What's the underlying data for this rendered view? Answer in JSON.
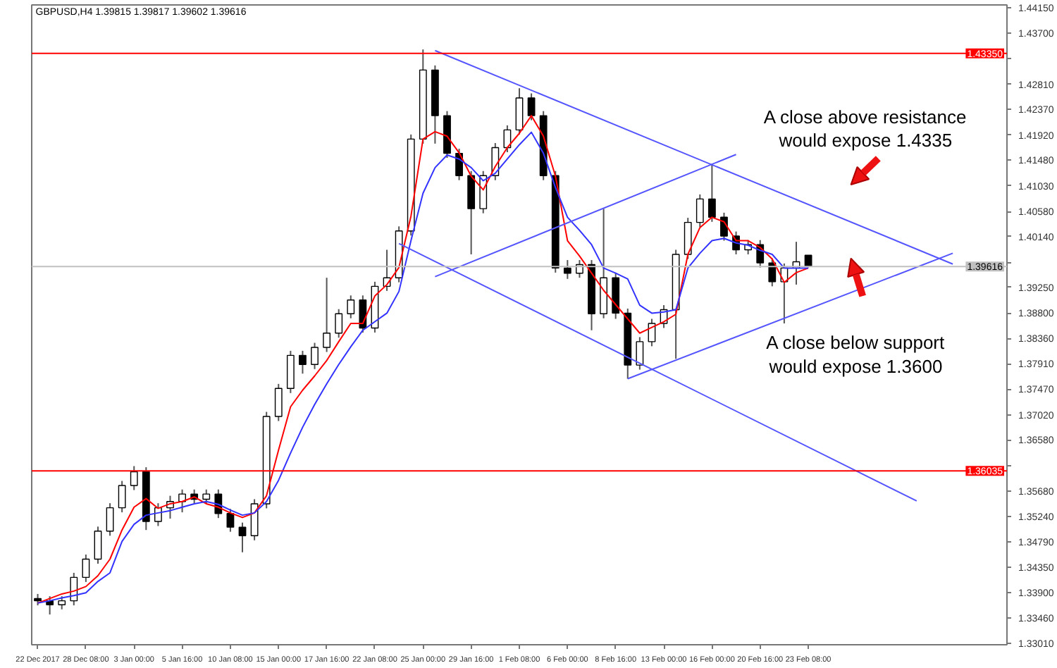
{
  "chart_data": {
    "type": "candlestick",
    "title": "GBPUSD,H4  1.39815 1.39817 1.39602 1.39616",
    "categories": [
      "22 Dec 2017",
      null,
      null,
      null,
      "28 Dec 08:00",
      null,
      null,
      null,
      "3 Jan 00:00",
      null,
      null,
      null,
      "5 Jan 16:00",
      null,
      null,
      null,
      "10 Jan 08:00",
      null,
      null,
      null,
      "15 Jan 00:00",
      null,
      null,
      null,
      "17 Jan 16:00",
      null,
      null,
      null,
      "22 Jan 08:00",
      null,
      null,
      null,
      "25 Jan 00:00",
      null,
      null,
      null,
      "29 Jan 16:00",
      null,
      null,
      null,
      "1 Feb 08:00",
      null,
      null,
      null,
      "6 Feb 00:00",
      null,
      null,
      null,
      "8 Feb 16:00",
      null,
      null,
      null,
      "13 Feb 00:00",
      null,
      null,
      null,
      "16 Feb 00:00",
      null,
      null,
      null,
      "20 Feb 16:00",
      null,
      null,
      null,
      "23 Feb 08:00",
      null,
      null,
      null,
      null,
      null,
      null,
      null,
      null,
      null,
      null,
      null,
      null,
      null,
      null,
      null,
      null
    ],
    "ohlc": [
      [
        1.338,
        1.3388,
        1.3368,
        1.3376
      ],
      [
        1.3376,
        1.3384,
        1.3352,
        1.3369
      ],
      [
        1.3369,
        1.3384,
        1.3361,
        1.3376
      ],
      [
        1.3376,
        1.3425,
        1.3368,
        1.3417
      ],
      [
        1.3417,
        1.3457,
        1.3409,
        1.3449
      ],
      [
        1.3449,
        1.3506,
        1.3441,
        1.3498
      ],
      [
        1.3498,
        1.3547,
        1.349,
        1.3539
      ],
      [
        1.3539,
        1.3586,
        1.3531,
        1.3578
      ],
      [
        1.3578,
        1.3612,
        1.357,
        1.3602
      ],
      [
        1.3602,
        1.361,
        1.35,
        1.3515
      ],
      [
        1.3515,
        1.3547,
        1.3507,
        1.3539
      ],
      [
        1.3539,
        1.356,
        1.352,
        1.355
      ],
      [
        1.355,
        1.3571,
        1.3531,
        1.3563
      ],
      [
        1.3563,
        1.3571,
        1.3546,
        1.3554
      ],
      [
        1.3554,
        1.3571,
        1.3546,
        1.3563
      ],
      [
        1.3563,
        1.3571,
        1.3521,
        1.3529
      ],
      [
        1.3529,
        1.3537,
        1.3497,
        1.3505
      ],
      [
        1.3505,
        1.3513,
        1.3461,
        1.349
      ],
      [
        1.349,
        1.3554,
        1.3482,
        1.3546
      ],
      [
        1.3546,
        1.3707,
        1.3538,
        1.3699
      ],
      [
        1.3699,
        1.3756,
        1.3691,
        1.3748
      ],
      [
        1.3748,
        1.3814,
        1.374,
        1.3806
      ],
      [
        1.3806,
        1.3814,
        1.3774,
        1.379
      ],
      [
        1.379,
        1.3828,
        1.3782,
        1.382
      ],
      [
        1.382,
        1.3942,
        1.3812,
        1.3845
      ],
      [
        1.3845,
        1.3887,
        1.3837,
        1.3879
      ],
      [
        1.3879,
        1.3911,
        1.3871,
        1.3903
      ],
      [
        1.3903,
        1.3911,
        1.3846,
        1.3854
      ],
      [
        1.3854,
        1.3935,
        1.3846,
        1.3927
      ],
      [
        1.3927,
        1.3991,
        1.3919,
        1.3942
      ],
      [
        1.3942,
        1.4032,
        1.3934,
        1.4024
      ],
      [
        1.4024,
        1.4193,
        1.4016,
        1.4185
      ],
      [
        1.4185,
        1.4342,
        1.4177,
        1.4306
      ],
      [
        1.4306,
        1.4314,
        1.4177,
        1.4226
      ],
      [
        1.4226,
        1.4234,
        1.4152,
        1.416
      ],
      [
        1.416,
        1.4168,
        1.4113,
        1.4121
      ],
      [
        1.4121,
        1.4129,
        1.3983,
        1.4063
      ],
      [
        1.4063,
        1.4129,
        1.4055,
        1.4121
      ],
      [
        1.4121,
        1.4178,
        1.4113,
        1.417
      ],
      [
        1.417,
        1.4209,
        1.4162,
        1.4201
      ],
      [
        1.4201,
        1.4274,
        1.4193,
        1.4257
      ],
      [
        1.4257,
        1.4265,
        1.4218,
        1.4226
      ],
      [
        1.4226,
        1.4234,
        1.4113,
        1.4121
      ],
      [
        1.4121,
        1.4129,
        1.3951,
        1.3959
      ],
      [
        1.3959,
        1.3973,
        1.394,
        1.395
      ],
      [
        1.395,
        1.3973,
        1.3942,
        1.3965
      ],
      [
        1.3965,
        1.3973,
        1.385,
        1.3879
      ],
      [
        1.3879,
        1.4063,
        1.3871,
        1.3942
      ],
      [
        1.3942,
        1.395,
        1.387,
        1.388
      ],
      [
        1.388,
        1.3888,
        1.3765,
        1.3789
      ],
      [
        1.3789,
        1.3838,
        1.3781,
        1.383
      ],
      [
        1.383,
        1.387,
        1.3822,
        1.3862
      ],
      [
        1.3862,
        1.3894,
        1.3854,
        1.3886
      ],
      [
        1.3886,
        1.3991,
        1.38,
        1.3983
      ],
      [
        1.3983,
        1.4047,
        1.3975,
        1.4039
      ],
      [
        1.4039,
        1.4088,
        1.4031,
        1.408
      ],
      [
        1.408,
        1.4141,
        1.404,
        1.4048
      ],
      [
        1.4048,
        1.4056,
        1.4007,
        1.4015
      ],
      [
        1.4015,
        1.4023,
        1.3983,
        1.3991
      ],
      [
        1.3991,
        1.4008,
        1.3983,
        1.4
      ],
      [
        1.4,
        1.4008,
        1.396,
        1.3968
      ],
      [
        1.3968,
        1.3976,
        1.3927,
        1.3935
      ],
      [
        1.3935,
        1.3967,
        1.3862,
        1.3959
      ],
      [
        1.3959,
        1.4005,
        1.393,
        1.397
      ],
      [
        1.39815,
        1.39817,
        1.39602,
        1.39616
      ],
      null,
      null,
      null,
      null,
      null,
      null,
      null,
      null,
      null,
      null,
      null,
      null,
      null,
      null,
      null,
      null
    ],
    "series": [
      {
        "type": "line",
        "color": "#ff0000",
        "values": [
          1.3372,
          1.338,
          1.3388,
          1.3393,
          1.3401,
          1.342,
          1.3449,
          1.35,
          1.354,
          1.3555,
          1.3538,
          1.3546,
          1.355,
          1.3558,
          1.3546,
          1.354,
          1.353,
          1.3522,
          1.353,
          1.356,
          1.364,
          1.3716,
          1.3745,
          1.377,
          1.3797,
          1.383,
          1.3862,
          1.3862,
          1.391,
          1.393,
          1.396,
          1.405,
          1.4185,
          1.4198,
          1.419,
          1.4161,
          1.412,
          1.4096,
          1.4137,
          1.417,
          1.4195,
          1.4226,
          1.419,
          1.412,
          1.4007,
          1.398,
          1.395,
          1.392,
          1.3895,
          1.387,
          1.3845,
          1.3855,
          1.3865,
          1.3878,
          1.3983,
          1.403,
          1.4048,
          1.404,
          1.4007,
          1.4007,
          1.3995,
          1.3975,
          1.3934,
          1.3951,
          1.3959,
          null,
          null,
          null,
          null,
          null,
          null,
          null,
          null,
          null,
          null,
          null,
          null,
          null,
          null,
          null,
          null
        ]
      },
      {
        "type": "line",
        "color": "#3333ff",
        "values": [
          1.3372,
          1.3376,
          1.3381,
          1.3385,
          1.339,
          1.341,
          1.3425,
          1.348,
          1.351,
          1.3526,
          1.353,
          1.3534,
          1.354,
          1.3546,
          1.355,
          1.3545,
          1.3535,
          1.3526,
          1.353,
          1.355,
          1.3587,
          1.3635,
          1.368,
          1.372,
          1.3756,
          1.379,
          1.3821,
          1.385,
          1.3865,
          1.388,
          1.3918,
          1.4007,
          1.409,
          1.4135,
          1.4157,
          1.415,
          1.4135,
          1.4112,
          1.4125,
          1.415,
          1.4175,
          1.4197,
          1.416,
          1.41,
          1.4048,
          1.4025,
          1.4,
          1.3959,
          1.395,
          1.394,
          1.3894,
          1.388,
          1.3882,
          1.3886,
          1.3959,
          1.3985,
          1.4007,
          1.4011,
          1.4003,
          1.3999,
          1.399,
          1.3983,
          1.3959,
          1.3959,
          1.3959,
          null,
          null,
          null,
          null,
          null,
          null,
          null,
          null,
          null,
          null,
          null,
          null,
          null,
          null,
          null,
          null
        ]
      },
      {
        "type": "line",
        "color": "#5555ff",
        "values": [
          null,
          null,
          null,
          null,
          null,
          null,
          null,
          null,
          null,
          null,
          null,
          null,
          null,
          null,
          null,
          null,
          null,
          null,
          null,
          null,
          null,
          null,
          null,
          null,
          null,
          null,
          null,
          null,
          null,
          null,
          null,
          null,
          null,
          1.434,
          null,
          null,
          null,
          null,
          null,
          null,
          null,
          null,
          null,
          null,
          null,
          null,
          null,
          null,
          null,
          null,
          null,
          null,
          null,
          null,
          null,
          null,
          null,
          null,
          null,
          null,
          null,
          null,
          null,
          null,
          null,
          null,
          null,
          null,
          null,
          null,
          null,
          null,
          null,
          null,
          null,
          null,
          1.3966,
          null,
          null,
          null,
          null
        ]
      },
      {
        "type": "line",
        "color": "#5555ff",
        "values": [
          null,
          null,
          null,
          null,
          null,
          null,
          null,
          null,
          null,
          null,
          null,
          null,
          null,
          null,
          null,
          null,
          null,
          null,
          null,
          null,
          null,
          null,
          null,
          null,
          null,
          null,
          null,
          null,
          null,
          null,
          1.4002,
          null,
          null,
          null,
          null,
          null,
          null,
          null,
          null,
          null,
          null,
          null,
          null,
          null,
          null,
          null,
          null,
          null,
          null,
          null,
          null,
          null,
          null,
          null,
          null,
          null,
          null,
          null,
          null,
          null,
          null,
          null,
          null,
          null,
          null,
          null,
          null,
          null,
          null,
          null,
          null,
          null,
          null,
          1.3551,
          null,
          null,
          null,
          null,
          null,
          null,
          null
        ]
      },
      {
        "type": "line",
        "color": "#5555ff",
        "values": [
          null,
          null,
          null,
          null,
          null,
          null,
          null,
          null,
          null,
          null,
          null,
          null,
          null,
          null,
          null,
          null,
          null,
          null,
          null,
          null,
          null,
          null,
          null,
          null,
          null,
          null,
          null,
          null,
          null,
          null,
          null,
          null,
          null,
          1.3944,
          null,
          null,
          null,
          null,
          null,
          null,
          null,
          null,
          null,
          null,
          null,
          null,
          null,
          null,
          null,
          null,
          null,
          null,
          null,
          null,
          null,
          null,
          null,
          null,
          1.4158,
          null,
          null,
          null,
          null,
          null,
          null,
          null,
          null,
          null,
          null,
          null,
          null,
          null,
          null,
          null,
          null,
          null,
          null,
          null,
          null,
          null,
          null
        ]
      },
      {
        "type": "line",
        "color": "#5555ff",
        "values": [
          null,
          null,
          null,
          null,
          null,
          null,
          null,
          null,
          null,
          null,
          null,
          null,
          null,
          null,
          null,
          null,
          null,
          null,
          null,
          null,
          null,
          null,
          null,
          null,
          null,
          null,
          null,
          null,
          null,
          null,
          null,
          null,
          null,
          null,
          null,
          null,
          null,
          null,
          null,
          null,
          null,
          null,
          null,
          null,
          null,
          null,
          null,
          null,
          null,
          1.3765,
          null,
          null,
          null,
          null,
          null,
          null,
          null,
          null,
          null,
          null,
          null,
          null,
          null,
          null,
          null,
          null,
          null,
          null,
          null,
          null,
          null,
          null,
          null,
          null,
          null,
          null,
          1.3985,
          null,
          null,
          null,
          null
        ]
      }
    ],
    "ylim": [
      1.3299,
      1.442
    ],
    "yticks": [
      {
        "value": 1.4415,
        "label": "1.44150"
      },
      {
        "value": 1.437,
        "label": "1.43700"
      },
      {
        "value": 1.4326,
        "label": null
      },
      {
        "value": 1.4281,
        "label": "1.42810"
      },
      {
        "value": 1.4237,
        "label": "1.42370"
      },
      {
        "value": 1.4192,
        "label": "1.41920"
      },
      {
        "value": 1.4148,
        "label": "1.41480"
      },
      {
        "value": 1.4103,
        "label": "1.41030"
      },
      {
        "value": 1.4058,
        "label": "1.40580"
      },
      {
        "value": 1.4014,
        "label": "1.40140"
      },
      {
        "value": 1.3969,
        "label": null
      },
      {
        "value": 1.3925,
        "label": "1.39250"
      },
      {
        "value": 1.388,
        "label": "1.38800"
      },
      {
        "value": 1.3836,
        "label": "1.38360"
      },
      {
        "value": 1.3791,
        "label": "1.37910"
      },
      {
        "value": 1.3747,
        "label": "1.37470"
      },
      {
        "value": 1.3702,
        "label": "1.37020"
      },
      {
        "value": 1.3658,
        "label": "1.36580"
      },
      {
        "value": 1.3613,
        "label": null
      },
      {
        "value": 1.3568,
        "label": "1.35680"
      },
      {
        "value": 1.3524,
        "label": "1.35240"
      },
      {
        "value": 1.3479,
        "label": "1.34790"
      },
      {
        "value": 1.3435,
        "label": "1.34350"
      },
      {
        "value": 1.339,
        "label": "1.33900"
      },
      {
        "value": 1.3346,
        "label": "1.33460"
      },
      {
        "value": 1.3301,
        "label": "1.33010"
      }
    ],
    "ref_lines": [
      {
        "axis": "y",
        "value": 1.4335,
        "label": "1.43350",
        "color": "#ff0000"
      },
      {
        "axis": "y",
        "value": 1.36035,
        "label": "1.36035",
        "color": "#ff0000"
      },
      {
        "axis": "y",
        "value": 1.39616,
        "label": "1.39616",
        "color": "#c0c0c0"
      }
    ],
    "annotations": [
      "A close above resistance\nwould expose 1.4335",
      "A close below support\nwould expose 1.3600"
    ]
  }
}
